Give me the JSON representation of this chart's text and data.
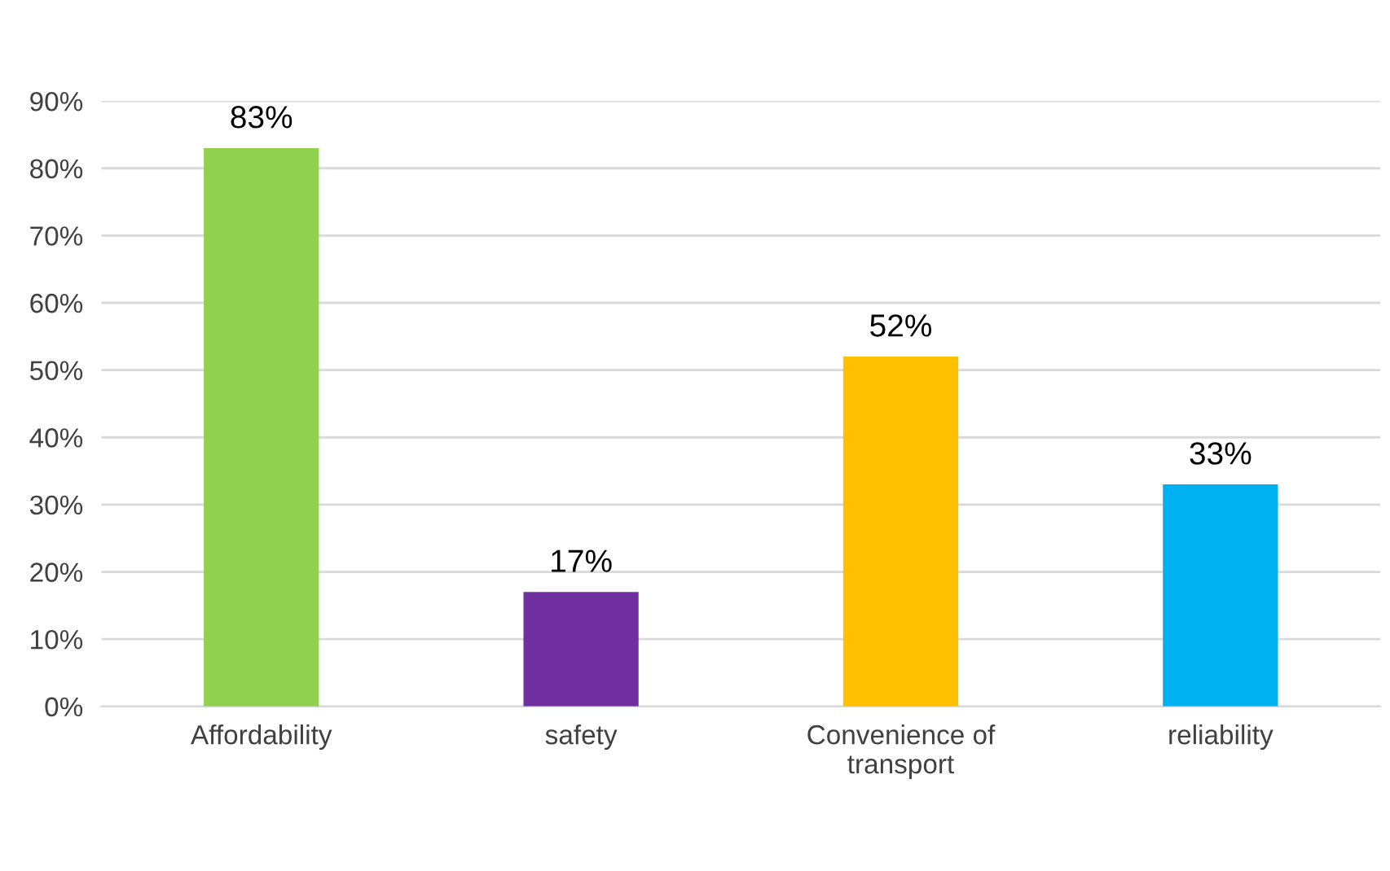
{
  "chart_data": {
    "type": "bar",
    "categories": [
      "Affordability",
      "safety",
      "Convenience of transport",
      "reliability"
    ],
    "values": [
      83,
      17,
      52,
      33
    ],
    "colors": [
      "#92d050",
      "#7030a0",
      "#ffc000",
      "#00b0f0"
    ],
    "value_labels": [
      "83%",
      "17%",
      "52%",
      "33%"
    ],
    "ylim": [
      0,
      90
    ],
    "yticks": [
      {
        "value": 0,
        "label": "0%"
      },
      {
        "value": 10,
        "label": "10%"
      },
      {
        "value": 20,
        "label": "20%"
      },
      {
        "value": 30,
        "label": "30%"
      },
      {
        "value": 40,
        "label": "40%"
      },
      {
        "value": 50,
        "label": "50%"
      },
      {
        "value": 60,
        "label": "60%"
      },
      {
        "value": 70,
        "label": "70%"
      },
      {
        "value": 80,
        "label": "80%"
      },
      {
        "value": 90,
        "label": "90%"
      }
    ],
    "grid": "y",
    "legend": false
  }
}
